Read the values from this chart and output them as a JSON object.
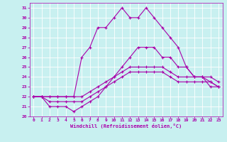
{
  "xlabel": "Windchill (Refroidissement éolien,°C)",
  "xlim": [
    -0.5,
    23.5
  ],
  "ylim": [
    20,
    31.5
  ],
  "background_color": "#c8f0f0",
  "line_color": "#aa00aa",
  "grid_color": "#ffffff",
  "xticks": [
    0,
    1,
    2,
    3,
    4,
    5,
    6,
    7,
    8,
    9,
    10,
    11,
    12,
    13,
    14,
    15,
    16,
    17,
    18,
    19,
    20,
    21,
    22,
    23
  ],
  "yticks": [
    20,
    21,
    22,
    23,
    24,
    25,
    26,
    27,
    28,
    29,
    30,
    31
  ],
  "line1_x": [
    0,
    1,
    2,
    3,
    4,
    5,
    6,
    7,
    8,
    9,
    10,
    11,
    12,
    13,
    14,
    15,
    16,
    17,
    18,
    19,
    20,
    21,
    22,
    23
  ],
  "line1_y": [
    22,
    22,
    21.5,
    21.5,
    21.5,
    21.5,
    21.5,
    22,
    22.5,
    23,
    23.5,
    24,
    24.5,
    24.5,
    24.5,
    24.5,
    24.5,
    24,
    23.5,
    23.5,
    23.5,
    23.5,
    23.5,
    23
  ],
  "line2_x": [
    0,
    1,
    2,
    3,
    4,
    5,
    6,
    7,
    8,
    9,
    10,
    11,
    12,
    13,
    14,
    15,
    16,
    17,
    18,
    19,
    20,
    21,
    22,
    23
  ],
  "line2_y": [
    22,
    22,
    22,
    22,
    22,
    22,
    22,
    22.5,
    23,
    23.5,
    24,
    24.5,
    25,
    25,
    25,
    25,
    25,
    24.5,
    24,
    24,
    24,
    24,
    24,
    23.5
  ],
  "line3_x": [
    0,
    1,
    2,
    3,
    4,
    5,
    6,
    7,
    8,
    9,
    10,
    11,
    12,
    13,
    14,
    15,
    16,
    17,
    18,
    19,
    20,
    21,
    22,
    23
  ],
  "line3_y": [
    22,
    22,
    21,
    21,
    21,
    20.5,
    21,
    21.5,
    22,
    23,
    24,
    25,
    26,
    27,
    27,
    27,
    26,
    26,
    25,
    25,
    24,
    24,
    23.5,
    23
  ],
  "line4_x": [
    0,
    1,
    2,
    3,
    4,
    5,
    6,
    7,
    8,
    9,
    10,
    11,
    12,
    13,
    14,
    15,
    16,
    17,
    18,
    19,
    20,
    21,
    22,
    23
  ],
  "line4_y": [
    22,
    22,
    22,
    22,
    22,
    22,
    26,
    27,
    29,
    29,
    30,
    31,
    30,
    30,
    31,
    30,
    29,
    28,
    27,
    25,
    24,
    24,
    23,
    23
  ]
}
